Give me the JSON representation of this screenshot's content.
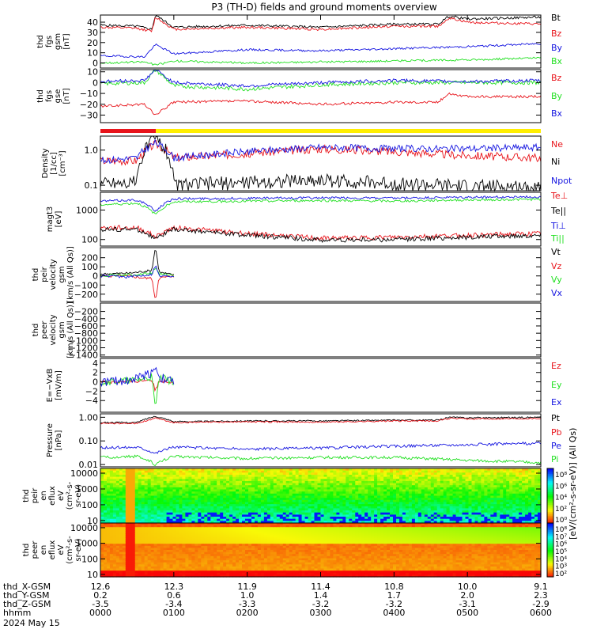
{
  "title": "P3 (TH-D) fields and ground moments overview",
  "date_label": "2024 May 15",
  "colors": {
    "black": "#000000",
    "red": "#e8141b",
    "green": "#22e022",
    "blue": "#1414e0",
    "yellow": "#ffee00",
    "bar_red": "#e8141b"
  },
  "time_axis": {
    "rows": [
      {
        "label": "thd_X-GSM",
        "values": [
          "12.6",
          "12.3",
          "11.9",
          "11.4",
          "10.8",
          "10.0",
          "9.1"
        ]
      },
      {
        "label": "thd_Y-GSM",
        "values": [
          "0.2",
          "0.6",
          "1.0",
          "1.4",
          "1.7",
          "2.0",
          "2.3"
        ]
      },
      {
        "label": "thd_Z-GSM",
        "values": [
          "-3.5",
          "-3.4",
          "-3.3",
          "-3.2",
          "-3.2",
          "-3.1",
          "-2.9"
        ]
      },
      {
        "label": "hhmm",
        "values": [
          "0000",
          "0100",
          "0200",
          "0300",
          "0400",
          "0500",
          "0600"
        ]
      }
    ]
  },
  "colorbar_label": "[eV/(cm²-s-sr-eV)] (All Qs)",
  "colorbar_ticks": [
    "10⁸",
    "10⁶",
    "10⁴",
    "10²",
    "10⁰"
  ],
  "colorbar_ticks2": [
    "10⁸",
    "10⁷",
    "10⁶",
    "10⁵",
    "10⁴",
    "10³",
    "10²"
  ],
  "chart_data": [
    {
      "type": "line",
      "ylabel": [
        "thd",
        "fgs",
        "gsm",
        "[nT]"
      ],
      "ylim": [
        -5,
        47
      ],
      "log": false,
      "yticks": [
        0,
        10,
        20,
        30,
        40
      ],
      "ytick_labels": [
        "0",
        "10",
        "20",
        "30",
        "40"
      ],
      "series": [
        {
          "name": "Bt",
          "color": "black",
          "x": [
            0,
            0.5,
            0.7,
            0.75,
            1,
            2,
            3,
            4,
            4.6,
            4.75,
            5,
            6
          ],
          "y": [
            37,
            36,
            33,
            47,
            35,
            37,
            35,
            38,
            38,
            46,
            43,
            45
          ],
          "noise": 1.2
        },
        {
          "name": "Bz",
          "color": "red",
          "x": [
            0,
            0.5,
            0.7,
            0.75,
            1,
            2,
            3,
            4,
            4.6,
            4.75,
            5,
            6
          ],
          "y": [
            35,
            34,
            31,
            45,
            33,
            35,
            33,
            36,
            36,
            44,
            40,
            38
          ],
          "noise": 1.2
        },
        {
          "name": "By",
          "color": "blue",
          "x": [
            0,
            0.6,
            0.75,
            1,
            2,
            3,
            4,
            5,
            6
          ],
          "y": [
            7,
            6,
            18,
            9,
            13,
            12,
            14,
            16,
            19
          ],
          "noise": 1.0
        },
        {
          "name": "Bx",
          "color": "green",
          "x": [
            0,
            0.6,
            0.75,
            1,
            2,
            3,
            4,
            5,
            6
          ],
          "y": [
            0,
            1,
            -2,
            2,
            0,
            1,
            2,
            3,
            5
          ],
          "noise": 1.0
        }
      ]
    },
    {
      "type": "line",
      "ylabel": [
        "thd",
        "fgs",
        "gse",
        "[nT]"
      ],
      "ylim": [
        -37,
        12
      ],
      "log": false,
      "yticks": [
        -30,
        -20,
        -10,
        0,
        10
      ],
      "ytick_labels": [
        "−30",
        "−20",
        "−10",
        "0",
        "10"
      ],
      "series": [
        {
          "name": "Bz",
          "color": "red",
          "x": [
            0,
            0.6,
            0.75,
            1,
            2,
            3,
            4,
            4.6,
            4.75,
            5,
            6
          ],
          "y": [
            -22,
            -20,
            -30,
            -18,
            -17,
            -20,
            -18,
            -18,
            -10,
            -13,
            -13
          ],
          "noise": 1.2
        },
        {
          "name": "By",
          "color": "green",
          "x": [
            0,
            0.6,
            0.75,
            1,
            2,
            3,
            4,
            5,
            6
          ],
          "y": [
            -1,
            0,
            12,
            -3,
            -6,
            -2,
            0,
            0,
            0
          ],
          "noise": 1.8
        },
        {
          "name": "Bx",
          "color": "blue",
          "x": [
            0,
            0.6,
            0.75,
            1,
            2,
            3,
            4,
            5,
            6
          ],
          "y": [
            1,
            2,
            12,
            0,
            -3,
            0,
            2,
            1,
            2
          ],
          "noise": 1.5
        }
      ]
    },
    {
      "type": "line",
      "ylabel": [
        "Density",
        "[1/cc]",
        "[cm⁻³]"
      ],
      "ylim": [
        0.07,
        2.5
      ],
      "log": true,
      "yticks": [
        0.1,
        1.0
      ],
      "ytick_labels": [
        "0.1",
        "1.0"
      ],
      "series": [
        {
          "name": "Ne",
          "color": "red",
          "x": [
            0,
            0.5,
            0.75,
            1,
            2,
            3,
            4,
            5,
            6
          ],
          "y": [
            0.5,
            0.5,
            1.5,
            0.6,
            0.8,
            1.1,
            0.9,
            0.7,
            0.6
          ],
          "noise": 0.12
        },
        {
          "name": "Ni",
          "color": "black",
          "x": [
            0,
            0.5,
            0.75,
            1,
            2,
            3,
            4,
            5,
            6
          ],
          "y": [
            0.12,
            0.12,
            2.2,
            0.1,
            0.12,
            0.14,
            0.11,
            0.09,
            0.09
          ],
          "noise": 0.2
        },
        {
          "name": "Npot",
          "color": "blue",
          "x": [
            0,
            0.5,
            0.75,
            1,
            2,
            3,
            4,
            5,
            6
          ],
          "y": [
            0.5,
            0.6,
            1.6,
            0.6,
            0.9,
            1.2,
            1.1,
            1.1,
            1.2
          ],
          "noise": 0.1
        }
      ]
    },
    {
      "type": "line",
      "ylabel": [
        "magt3",
        "[eV]"
      ],
      "ylim": [
        60,
        4000
      ],
      "log": true,
      "yticks": [
        100,
        1000
      ],
      "ytick_labels": [
        "100",
        "1000"
      ],
      "series": [
        {
          "name": "Te⊥",
          "color": "red",
          "x": [
            0,
            0.5,
            0.75,
            1,
            2,
            3,
            4,
            5,
            6
          ],
          "y": [
            250,
            250,
            120,
            250,
            160,
            110,
            120,
            140,
            160
          ],
          "noise": 0.08
        },
        {
          "name": "Te||",
          "color": "black",
          "x": [
            0,
            0.5,
            0.75,
            1,
            2,
            3,
            4,
            5,
            6
          ],
          "y": [
            220,
            220,
            100,
            220,
            140,
            95,
            100,
            120,
            140
          ],
          "noise": 0.08
        },
        {
          "name": "Ti⊥",
          "color": "blue",
          "x": [
            0,
            0.5,
            0.75,
            1,
            2,
            3,
            4,
            5,
            6
          ],
          "y": [
            2000,
            2200,
            900,
            2400,
            2500,
            2600,
            2500,
            2700,
            2800
          ],
          "noise": 0.04
        },
        {
          "name": "Ti||",
          "color": "green",
          "x": [
            0,
            0.5,
            0.75,
            1,
            2,
            3,
            4,
            5,
            6
          ],
          "y": [
            1500,
            1700,
            700,
            1900,
            2000,
            2100,
            2000,
            2200,
            2300
          ],
          "noise": 0.04
        }
      ]
    },
    {
      "type": "line",
      "ylabel": [
        "thd",
        "peir",
        "velocity",
        "gsm",
        "[km/s (All Qs)]"
      ],
      "ylim": [
        -280,
        310
      ],
      "log": false,
      "yticks": [
        -200,
        -100,
        0,
        100,
        200
      ],
      "ytick_labels": [
        "−200",
        "−100",
        "0",
        "100",
        "200"
      ],
      "series": [
        {
          "name": "Vt",
          "color": "black",
          "x": [
            0,
            0.4,
            0.7,
            0.75,
            0.8,
            1.0
          ],
          "y": [
            20,
            30,
            60,
            320,
            40,
            10
          ],
          "noise": 12
        },
        {
          "name": "Vz",
          "color": "red",
          "x": [
            0,
            0.4,
            0.7,
            0.75,
            0.8,
            1.0
          ],
          "y": [
            0,
            0,
            -30,
            -260,
            -20,
            0
          ],
          "noise": 15
        },
        {
          "name": "Vy",
          "color": "green",
          "x": [
            0,
            0.4,
            0.7,
            0.75,
            0.8,
            1.0
          ],
          "y": [
            5,
            10,
            30,
            80,
            20,
            5
          ],
          "noise": 15
        },
        {
          "name": "Vx",
          "color": "blue",
          "x": [
            0,
            0.4,
            0.7,
            0.75,
            0.8,
            1.0
          ],
          "y": [
            0,
            -10,
            20,
            120,
            0,
            0
          ],
          "noise": 15
        }
      ]
    },
    {
      "type": "line",
      "ylabel": [
        "thd",
        "peer",
        "velocity",
        "gsm",
        "[km/s (All Qs)]"
      ],
      "ylim": [
        -1450,
        30
      ],
      "log": false,
      "yticks": [
        -1400,
        -1200,
        -1000,
        -800,
        -600,
        -400,
        -200
      ],
      "ytick_labels": [
        "−1400",
        "−1200",
        "−1000",
        "−800",
        "−600",
        "−400",
        "−200"
      ],
      "series": [
        {
          "name": "Vt",
          "color": "black",
          "x": [],
          "y": [],
          "noise": 0
        },
        {
          "name": "Vz",
          "color": "red",
          "x": [],
          "y": [],
          "noise": 0
        },
        {
          "name": "Vy",
          "color": "green",
          "x": [],
          "y": [],
          "noise": 0
        },
        {
          "name": "Vx",
          "color": "blue",
          "x": [],
          "y": [],
          "noise": 0
        }
      ]
    },
    {
      "type": "line",
      "ylabel": [
        "E=−VxB",
        "[mV/m]"
      ],
      "ylim": [
        -6.5,
        5
      ],
      "log": false,
      "yticks": [
        -4,
        -2,
        0,
        2,
        4
      ],
      "ytick_labels": [
        "−4",
        "−2",
        "0",
        "2",
        "4"
      ],
      "series": [
        {
          "name": "Ez",
          "color": "red",
          "x": [
            0,
            0.4,
            0.7,
            0.75,
            0.8,
            1.0
          ],
          "y": [
            0,
            0,
            0.5,
            -2,
            0.3,
            0
          ],
          "noise": 0.4
        },
        {
          "name": "Ey",
          "color": "green",
          "x": [
            0,
            0.4,
            0.7,
            0.75,
            0.8,
            1.0
          ],
          "y": [
            0,
            0.2,
            1,
            -6,
            1,
            0
          ],
          "noise": 0.8
        },
        {
          "name": "Ex",
          "color": "blue",
          "x": [
            0,
            0.4,
            0.7,
            0.75,
            0.8,
            1.0
          ],
          "y": [
            0,
            0.3,
            2,
            3.5,
            1,
            0
          ],
          "noise": 1.0
        }
      ]
    },
    {
      "type": "line",
      "ylabel": [
        "Pressure",
        "[nPa]"
      ],
      "ylim": [
        0.008,
        1.4
      ],
      "log": true,
      "yticks": [
        0.01,
        0.1,
        1.0
      ],
      "ytick_labels": [
        "0.01",
        "0.10",
        "1.00"
      ],
      "series": [
        {
          "name": "Pt",
          "color": "black",
          "x": [
            0,
            0.5,
            0.75,
            1,
            2,
            3,
            4,
            4.6,
            4.75,
            5,
            6
          ],
          "y": [
            0.6,
            0.6,
            1.1,
            0.65,
            0.7,
            0.7,
            0.75,
            0.75,
            1.0,
            0.95,
            1.0
          ],
          "noise": 0.03
        },
        {
          "name": "Pb",
          "color": "red",
          "x": [
            0,
            0.5,
            0.75,
            1,
            2,
            3,
            4,
            4.6,
            4.75,
            5,
            6
          ],
          "y": [
            0.55,
            0.55,
            0.9,
            0.6,
            0.65,
            0.62,
            0.7,
            0.7,
            0.9,
            0.85,
            0.9
          ],
          "noise": 0.03
        },
        {
          "name": "Pe",
          "color": "blue",
          "x": [
            0,
            0.5,
            0.75,
            1,
            2,
            3,
            4,
            5,
            6
          ],
          "y": [
            0.05,
            0.055,
            0.03,
            0.055,
            0.045,
            0.05,
            0.06,
            0.07,
            0.08
          ],
          "noise": 0.06
        },
        {
          "name": "Pi",
          "color": "green",
          "x": [
            0,
            0.5,
            0.75,
            1,
            2,
            3,
            4,
            5,
            6
          ],
          "y": [
            0.02,
            0.022,
            0.01,
            0.022,
            0.018,
            0.02,
            0.02,
            0.015,
            0.012
          ],
          "noise": 0.06
        }
      ]
    },
    {
      "type": "heatmap",
      "ylabel": [
        "thd",
        "peir",
        "en",
        "eflux",
        "eV",
        "(cm²-s-",
        "sr-eV)"
      ],
      "ylim": [
        7,
        20000
      ],
      "log": true,
      "yticks": [
        10,
        100,
        1000,
        10000
      ],
      "ytick_labels": [
        "10",
        "100",
        "1000",
        "10000"
      ]
    },
    {
      "type": "heatmap",
      "ylabel": [
        "thd",
        "peer",
        "en",
        "eflux",
        "eV",
        "(cm²-s-",
        "sr-eV)"
      ],
      "ylim": [
        7,
        20000
      ],
      "log": true,
      "yticks": [
        10,
        100,
        1000,
        10000
      ],
      "ytick_labels": [
        "10",
        "100",
        "1000",
        "10000"
      ]
    }
  ]
}
